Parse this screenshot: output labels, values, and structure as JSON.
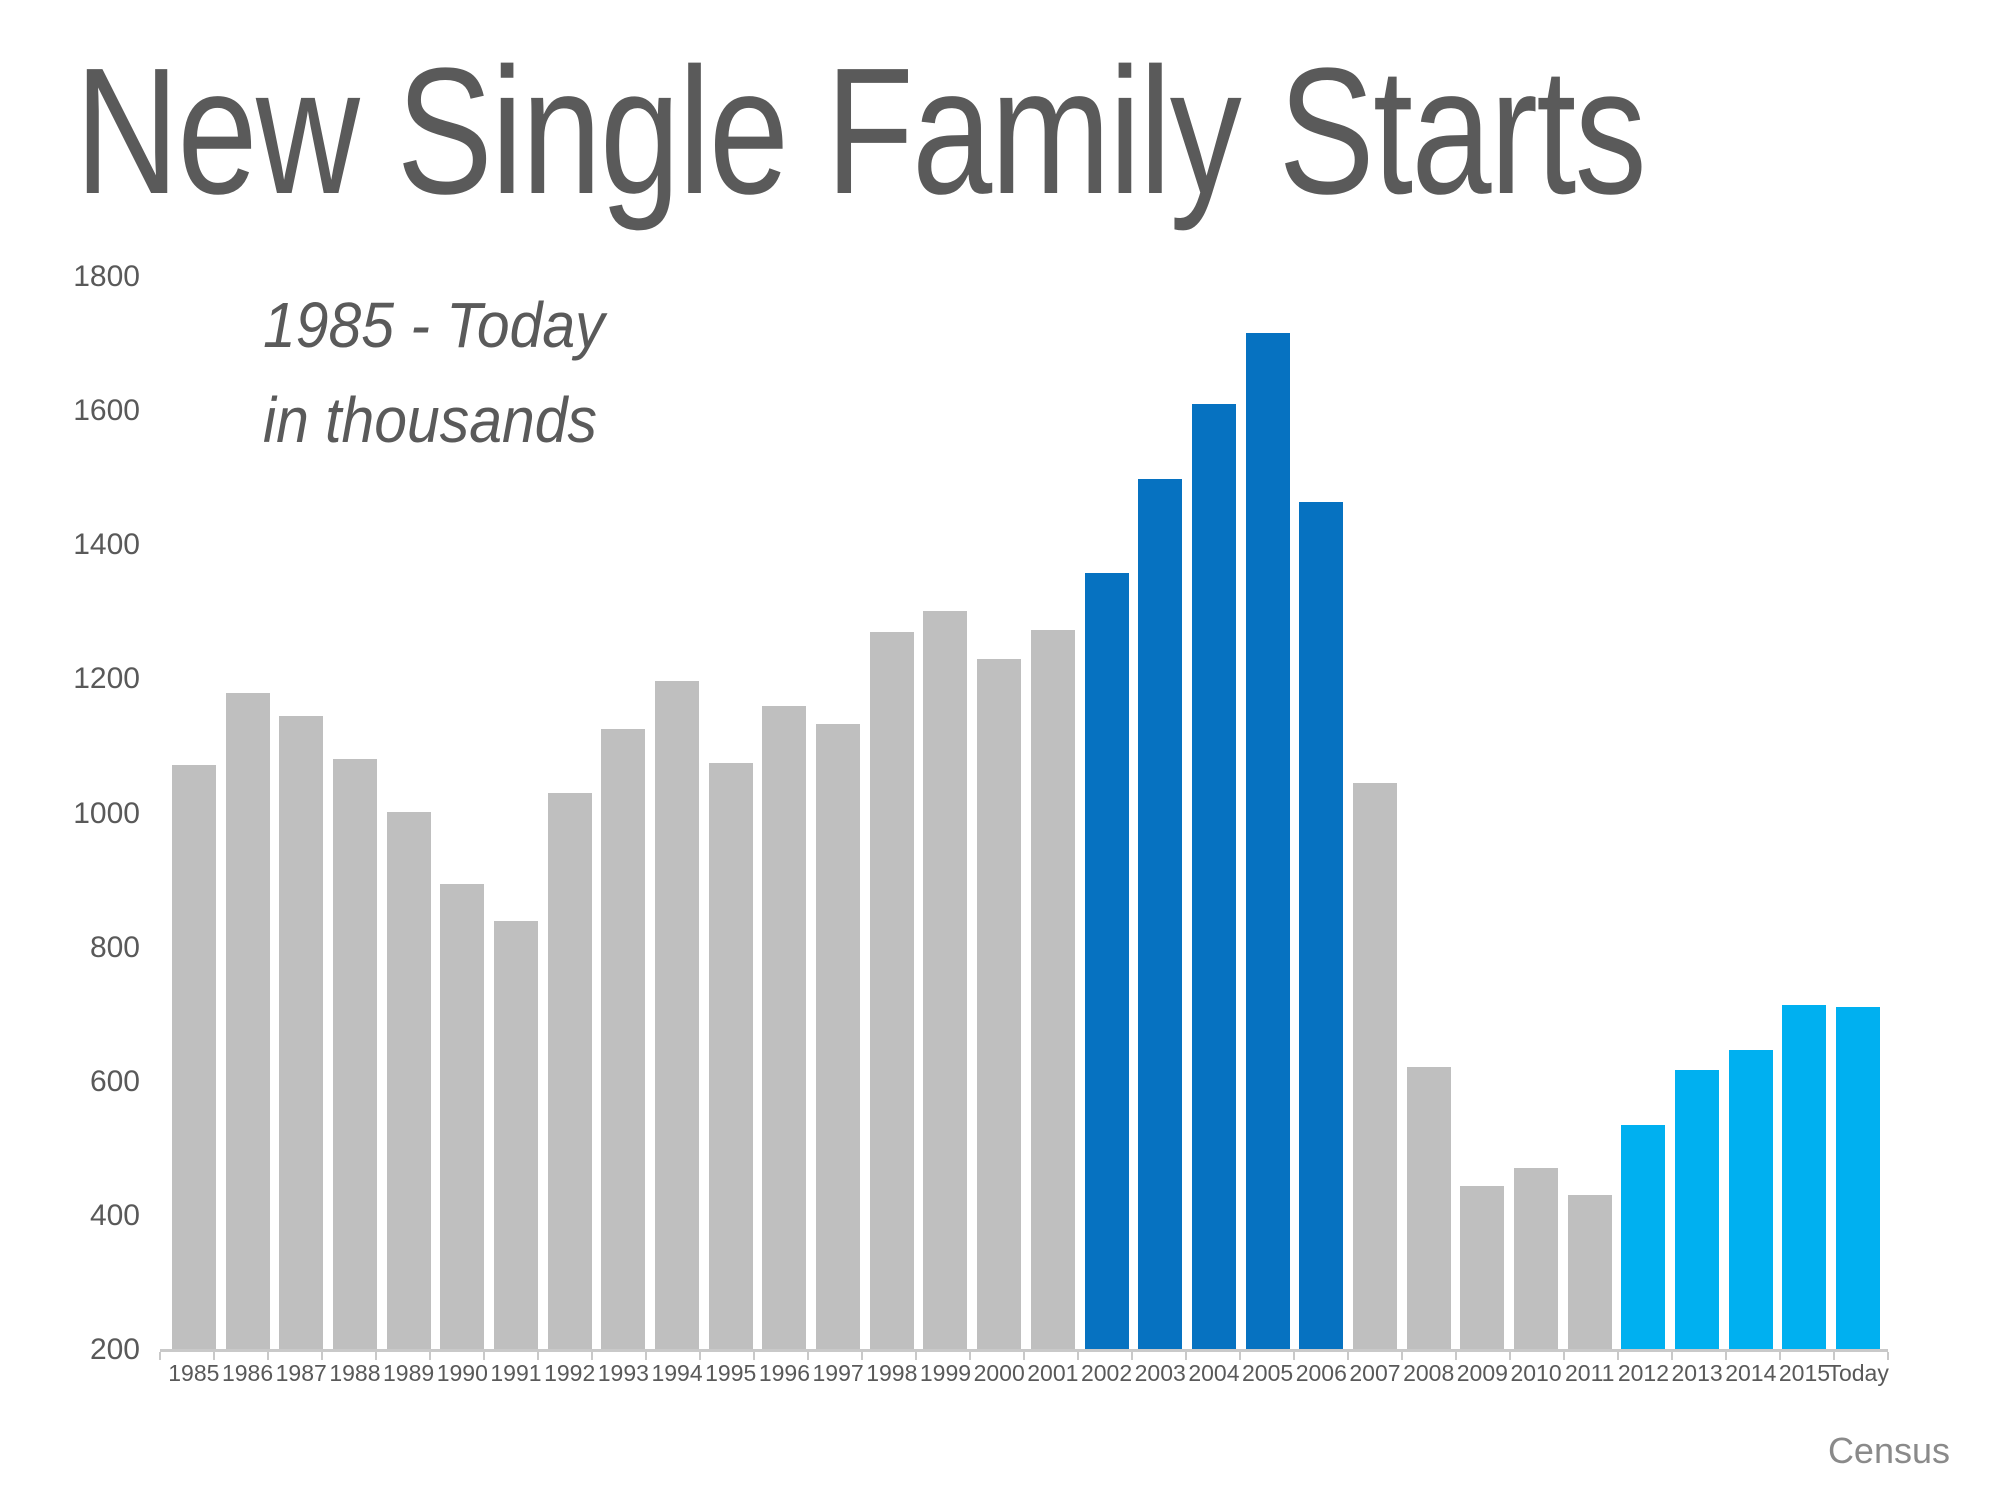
{
  "slide": {
    "title": "New Single Family Starts",
    "subtitle_line1": "1985 - Today",
    "subtitle_line2": "in thousands",
    "source": "Census"
  },
  "colors": {
    "bar_gray": "#bfbfbf",
    "bar_dark_blue": "#0672c1",
    "bar_light_blue": "#00b0f0",
    "title_text": "#5a5a5a",
    "axis_text": "#595959",
    "axis_line": "#c9c9c9",
    "source_text": "#8a8a8a"
  },
  "chart_data": {
    "type": "bar",
    "title": "New Single Family Starts",
    "subtitle": "1985 - Today in thousands",
    "xlabel": "",
    "ylabel": "",
    "ylim": [
      200,
      1800
    ],
    "y_ticks": [
      1800,
      1600,
      1400,
      1200,
      1000,
      800,
      600,
      400,
      200
    ],
    "grid": false,
    "legend": false,
    "source": "Census",
    "categories": [
      "1985",
      "1986",
      "1987",
      "1988",
      "1989",
      "1990",
      "1991",
      "1992",
      "1993",
      "1994",
      "1995",
      "1996",
      "1997",
      "1998",
      "1999",
      "2000",
      "2001",
      "2002",
      "2003",
      "2004",
      "2005",
      "2006",
      "2007",
      "2008",
      "2009",
      "2010",
      "2011",
      "2012",
      "2013",
      "2014",
      "2015",
      "Today"
    ],
    "values": [
      1072,
      1179,
      1146,
      1081,
      1003,
      895,
      840,
      1030,
      1126,
      1198,
      1076,
      1161,
      1134,
      1271,
      1302,
      1231,
      1273,
      1359,
      1499,
      1611,
      1716,
      1465,
      1046,
      622,
      445,
      471,
      431,
      535,
      618,
      648,
      715,
      712
    ],
    "bar_colors": [
      "#bfbfbf",
      "#bfbfbf",
      "#bfbfbf",
      "#bfbfbf",
      "#bfbfbf",
      "#bfbfbf",
      "#bfbfbf",
      "#bfbfbf",
      "#bfbfbf",
      "#bfbfbf",
      "#bfbfbf",
      "#bfbfbf",
      "#bfbfbf",
      "#bfbfbf",
      "#bfbfbf",
      "#bfbfbf",
      "#bfbfbf",
      "#0672c1",
      "#0672c1",
      "#0672c1",
      "#0672c1",
      "#0672c1",
      "#bfbfbf",
      "#bfbfbf",
      "#bfbfbf",
      "#bfbfbf",
      "#bfbfbf",
      "#00b0f0",
      "#00b0f0",
      "#00b0f0",
      "#00b0f0",
      "#00b0f0"
    ],
    "color_segments": [
      {
        "range": "1985-2001",
        "color": "#bfbfbf"
      },
      {
        "range": "2002-2006",
        "color": "#0672c1"
      },
      {
        "range": "2007-2011",
        "color": "#bfbfbf"
      },
      {
        "range": "2012-Today",
        "color": "#00b0f0"
      }
    ]
  }
}
